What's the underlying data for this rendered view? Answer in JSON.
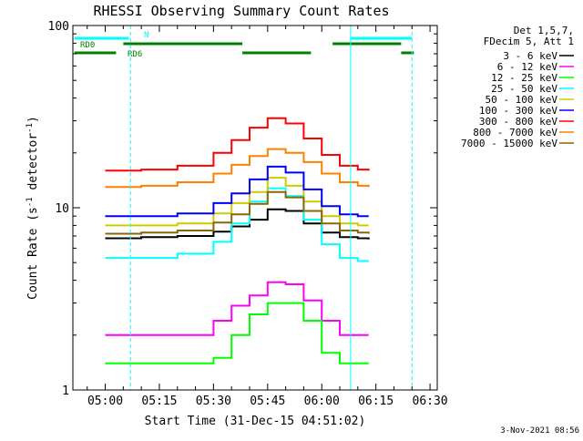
{
  "chart_data": {
    "type": "line",
    "title": "RHESSI Observing Summary Count Rates",
    "xlabel": "Start Time (31-Dec-15 04:51:02)",
    "ylabel_main": "Count Rate (s",
    "ylabel_sup1": "-1",
    "ylabel_mid": " detector",
    "ylabel_sup2": "-1",
    "ylabel_end": ")",
    "y_scale": "log",
    "ylim": [
      1,
      100
    ],
    "xlim": [
      "04:51:02",
      "06:32:00"
    ],
    "x_ticks": [
      "05:00",
      "05:15",
      "05:30",
      "05:45",
      "06:00",
      "06:15",
      "06:30"
    ],
    "y_ticks": [
      {
        "value": 1,
        "label": "1"
      },
      {
        "value": 10,
        "label": "10"
      },
      {
        "value": 100,
        "label": "100"
      }
    ],
    "legend_title": [
      "Det 1,5,7,",
      "FDecim 5, Att 1"
    ],
    "legend_placement": "right",
    "timestamp": "3-Nov-2021 08:56",
    "flags": [
      {
        "name": "N",
        "color": "#00ffff",
        "row": "top",
        "segments": [
          [
            "04:51:30",
            "05:06:30"
          ],
          [
            "06:08:00",
            "06:25:00"
          ]
        ]
      },
      {
        "name": "RD0",
        "color": "#008000",
        "row": "middle",
        "segments": [
          [
            "05:05:00",
            "05:38:00"
          ],
          [
            "06:03:00",
            "06:22:00"
          ]
        ]
      },
      {
        "name": "RD6",
        "color": "#008000",
        "row": "bottom",
        "segments": [
          [
            "04:51:30",
            "05:03:00"
          ],
          [
            "05:38:00",
            "05:57:00"
          ],
          [
            "06:22:00",
            "06:25:30"
          ]
        ]
      }
    ],
    "vertical_lines": [
      {
        "time": "05:07:00",
        "color": "#00ffff",
        "style": "dashed"
      },
      {
        "time": "06:08:00",
        "color": "#00ffff",
        "style": "solid"
      },
      {
        "time": "06:25:00",
        "color": "#00ffff",
        "style": "dashed"
      }
    ],
    "series": [
      {
        "name": "3 - 6 keV",
        "color": "#000000",
        "x": [
          "05:00",
          "05:10",
          "05:20",
          "05:30",
          "05:35",
          "05:40",
          "05:45",
          "05:50",
          "05:55",
          "06:00",
          "06:05",
          "06:10",
          "06:13"
        ],
        "y": [
          6.8,
          6.9,
          7.0,
          7.4,
          7.9,
          8.6,
          9.8,
          9.6,
          8.2,
          7.3,
          6.9,
          6.8,
          6.7
        ]
      },
      {
        "name": "6 - 12 keV",
        "color": "#ff00ff",
        "x": [
          "05:00",
          "05:10",
          "05:20",
          "05:30",
          "05:35",
          "05:40",
          "05:45",
          "05:50",
          "05:55",
          "06:00",
          "06:05",
          "06:10",
          "06:13"
        ],
        "y": [
          2.0,
          2.0,
          2.0,
          2.4,
          2.9,
          3.3,
          3.9,
          3.8,
          3.1,
          2.4,
          2.0,
          2.0,
          2.0
        ]
      },
      {
        "name": "12 - 25 keV",
        "color": "#00ff00",
        "x": [
          "05:00",
          "05:10",
          "05:20",
          "05:30",
          "05:35",
          "05:40",
          "05:45",
          "05:50",
          "05:55",
          "06:00",
          "06:05",
          "06:10",
          "06:13"
        ],
        "y": [
          1.4,
          1.4,
          1.4,
          1.5,
          2.0,
          2.6,
          3.0,
          3.0,
          2.4,
          1.6,
          1.4,
          1.4,
          1.4
        ]
      },
      {
        "name": "25 - 50 keV",
        "color": "#00ffff",
        "x": [
          "05:00",
          "05:10",
          "05:20",
          "05:30",
          "05:35",
          "05:40",
          "05:45",
          "05:50",
          "05:55",
          "06:00",
          "06:05",
          "06:10",
          "06:13"
        ],
        "y": [
          5.3,
          5.3,
          5.6,
          6.5,
          8.2,
          10.8,
          12.8,
          11.6,
          8.6,
          6.3,
          5.3,
          5.1,
          5.1
        ]
      },
      {
        "name": "50 - 100 keV",
        "color": "#cccc00",
        "x": [
          "05:00",
          "05:10",
          "05:20",
          "05:30",
          "05:35",
          "05:40",
          "05:45",
          "05:50",
          "05:55",
          "06:00",
          "06:05",
          "06:10",
          "06:13"
        ],
        "y": [
          8.0,
          8.0,
          8.2,
          9.3,
          10.6,
          12.2,
          14.6,
          13.2,
          10.8,
          9.0,
          8.2,
          8.0,
          8.0
        ]
      },
      {
        "name": "100 - 300 keV",
        "color": "#0000ff",
        "x": [
          "05:00",
          "05:10",
          "05:20",
          "05:30",
          "05:35",
          "05:40",
          "05:45",
          "05:50",
          "05:55",
          "06:00",
          "06:05",
          "06:10",
          "06:13"
        ],
        "y": [
          9.0,
          9.0,
          9.3,
          10.6,
          12.0,
          14.3,
          16.8,
          15.6,
          12.6,
          10.2,
          9.2,
          9.0,
          9.0
        ]
      },
      {
        "name": "300 - 800 keV",
        "color": "#ff0000",
        "x": [
          "05:00",
          "05:10",
          "05:20",
          "05:30",
          "05:35",
          "05:40",
          "05:45",
          "05:50",
          "05:55",
          "06:00",
          "06:05",
          "06:10",
          "06:13"
        ],
        "y": [
          16.0,
          16.2,
          17.0,
          20.0,
          23.5,
          27.5,
          31.0,
          29.0,
          24.0,
          19.5,
          17.0,
          16.2,
          16.0
        ]
      },
      {
        "name": "800 - 7000 keV",
        "color": "#ff8000",
        "x": [
          "05:00",
          "05:10",
          "05:20",
          "05:30",
          "05:35",
          "05:40",
          "05:45",
          "05:50",
          "05:55",
          "06:00",
          "06:05",
          "06:10",
          "06:13"
        ],
        "y": [
          13.0,
          13.2,
          13.8,
          15.4,
          17.2,
          19.2,
          21.0,
          20.0,
          17.8,
          15.4,
          13.8,
          13.2,
          13.0
        ]
      },
      {
        "name": "7000 - 15000 keV",
        "color": "#8b6508",
        "x": [
          "05:00",
          "05:10",
          "05:20",
          "05:30",
          "05:35",
          "05:40",
          "05:45",
          "05:50",
          "05:55",
          "06:00",
          "06:05",
          "06:10",
          "06:13"
        ],
        "y": [
          7.2,
          7.3,
          7.5,
          8.3,
          9.2,
          10.5,
          12.2,
          11.4,
          9.6,
          8.2,
          7.5,
          7.3,
          7.2
        ]
      }
    ]
  }
}
